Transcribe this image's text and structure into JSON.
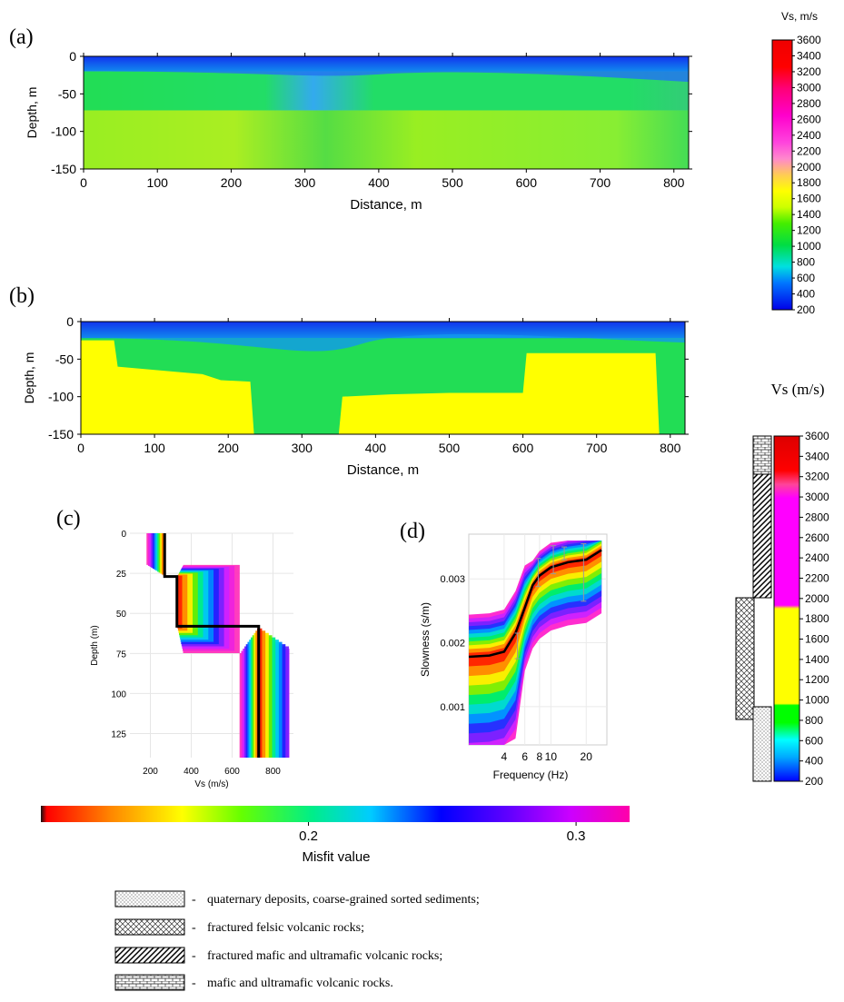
{
  "figure": {
    "panel_labels": [
      "(a)",
      "(b)",
      "(c)",
      "(d)"
    ]
  },
  "chart_data": [
    {
      "id": "a",
      "type": "heatmap",
      "title": "",
      "xlabel": "Distance, m",
      "ylabel": "Depth, m",
      "xlim": [
        0,
        820
      ],
      "ylim": [
        -150,
        0
      ],
      "xticks": [
        0,
        100,
        200,
        300,
        400,
        500,
        600,
        700,
        800
      ],
      "yticks": [
        0,
        -50,
        -100,
        -150
      ],
      "colorbar": {
        "title": "Vs, m/s",
        "ticks": [
          200,
          400,
          600,
          800,
          1000,
          1200,
          1400,
          1600,
          1800,
          2000,
          2200,
          2400,
          2600,
          2800,
          3000,
          3200,
          3400,
          3600
        ]
      },
      "layers": [
        {
          "depth_top": 0,
          "depth_bottom": -20,
          "vs": 300
        },
        {
          "depth_top": -20,
          "depth_bottom": -72,
          "vs": 900
        },
        {
          "depth_top": -72,
          "depth_bottom": -150,
          "vs": 1200
        }
      ]
    },
    {
      "id": "b",
      "type": "heatmap",
      "title": "",
      "xlabel": "Distance, m",
      "ylabel": "Depth, m",
      "xlim": [
        0,
        820
      ],
      "ylim": [
        -150,
        0
      ],
      "xticks": [
        0,
        100,
        200,
        300,
        400,
        500,
        600,
        700,
        800
      ],
      "yticks": [
        0,
        -50,
        -100,
        -150
      ],
      "colorbar": {
        "title": "Vs (m/s)",
        "ticks": [
          200,
          400,
          600,
          800,
          1000,
          1200,
          1400,
          1600,
          1800,
          2000,
          2200,
          2400,
          2600,
          2800,
          3000,
          3200,
          3400,
          3600
        ]
      },
      "bedrock_top_profile": {
        "distance": [
          0,
          45,
          50,
          165,
          190,
          230,
          235,
          350,
          355,
          420,
          500,
          600,
          605,
          780,
          785
        ],
        "depth": [
          -25,
          -25,
          -60,
          -70,
          -78,
          -80,
          -150,
          -150,
          -100,
          -97,
          -95,
          -95,
          -42,
          -42,
          -150
        ]
      }
    },
    {
      "id": "c",
      "type": "line",
      "title": "",
      "xlabel": "Vs (m/s)",
      "ylabel": "Depth (m)",
      "xlim": [
        100,
        900
      ],
      "ylim": [
        0,
        140
      ],
      "xticks": [
        200,
        400,
        600,
        800
      ],
      "yticks": [
        0,
        25,
        50,
        75,
        100,
        125
      ],
      "best_model": {
        "vs": [
          270,
          270,
          330,
          330,
          730,
          730
        ],
        "depth": [
          0,
          27,
          27,
          58,
          58,
          140
        ]
      }
    },
    {
      "id": "d",
      "type": "line",
      "title": "",
      "xlabel": "Frequency (Hz)",
      "ylabel": "Slowness (s/m)",
      "xscale": "log",
      "xlim": [
        2,
        30
      ],
      "ylim": [
        0.0004,
        0.0037
      ],
      "xticks": [
        4,
        6,
        8,
        10,
        20
      ],
      "xtick_labels": [
        "4",
        "6",
        "8",
        "10",
        "20"
      ],
      "yticks": [
        0.001,
        0.002,
        0.003
      ],
      "ytick_labels": [
        "0.001",
        "0.002",
        "0.003"
      ],
      "best_curve": {
        "frequency": [
          2.0,
          3.0,
          4.0,
          5.0,
          6.0,
          7.0,
          8.0,
          10.0,
          14.0,
          20.0,
          27.0
        ],
        "slowness": [
          0.00178,
          0.0018,
          0.00186,
          0.00215,
          0.00255,
          0.0029,
          0.00305,
          0.00318,
          0.00326,
          0.0033,
          0.00345
        ]
      }
    }
  ],
  "misfit_bar": {
    "label": "Misfit value",
    "ticks": [
      0.2,
      0.3
    ]
  },
  "legend": [
    {
      "pattern": "dots",
      "dash": "-",
      "text": "quaternary deposits, coarse-grained sorted sediments;"
    },
    {
      "pattern": "cross",
      "dash": "-",
      "text": "fractured felsic volcanic rocks;"
    },
    {
      "pattern": "diag",
      "dash": "-",
      "text": "fractured mafic and ultramafic volcanic rocks;"
    },
    {
      "pattern": "brick",
      "dash": "-",
      "text": "mafic and ultramafic volcanic rocks."
    }
  ]
}
